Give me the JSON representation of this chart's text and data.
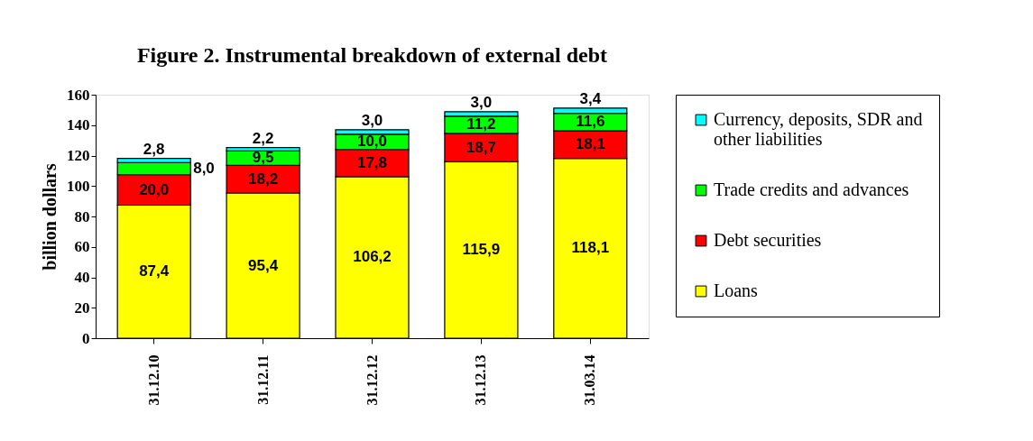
{
  "chart_data": {
    "type": "bar",
    "title": "Figure 2. Instrumental breakdown of external debt",
    "ylabel": "billion dollars",
    "categories": [
      "31.12.10",
      "31.12.11",
      "31.12.12",
      "31.12.13",
      "31.03.14"
    ],
    "stacked": true,
    "ylim": [
      0,
      160
    ],
    "yticks": [
      0,
      20,
      40,
      60,
      80,
      100,
      120,
      140,
      160
    ],
    "grid": false,
    "legend": "right",
    "series": [
      {
        "name": "Loans",
        "color": "#ffff00",
        "values": [
          87.4,
          95.4,
          106.2,
          115.9,
          118.1
        ],
        "value_labels": [
          "87,4",
          "95,4",
          "106,2",
          "115,9",
          "118,1"
        ]
      },
      {
        "name": "Debt securities",
        "color": "#ff0000",
        "values": [
          20.0,
          18.2,
          17.8,
          18.7,
          18.1
        ],
        "value_labels": [
          "20,0",
          "18,2",
          "17,8",
          "18,7",
          "18,1"
        ]
      },
      {
        "name": "Trade credits and advances",
        "color": "#00ff00",
        "values": [
          8.0,
          9.5,
          10.0,
          11.2,
          11.6
        ],
        "value_labels": [
          "8,0",
          "9,5",
          "10,0",
          "11,2",
          "11,6"
        ]
      },
      {
        "name": "Currency, deposits, SDR and other liabilities",
        "color": "#00ffff",
        "values": [
          2.8,
          2.2,
          3.0,
          3.0,
          3.4
        ],
        "value_labels": [
          "2,8",
          "2,2",
          "3,0",
          "3,0",
          "3,4"
        ]
      }
    ]
  }
}
